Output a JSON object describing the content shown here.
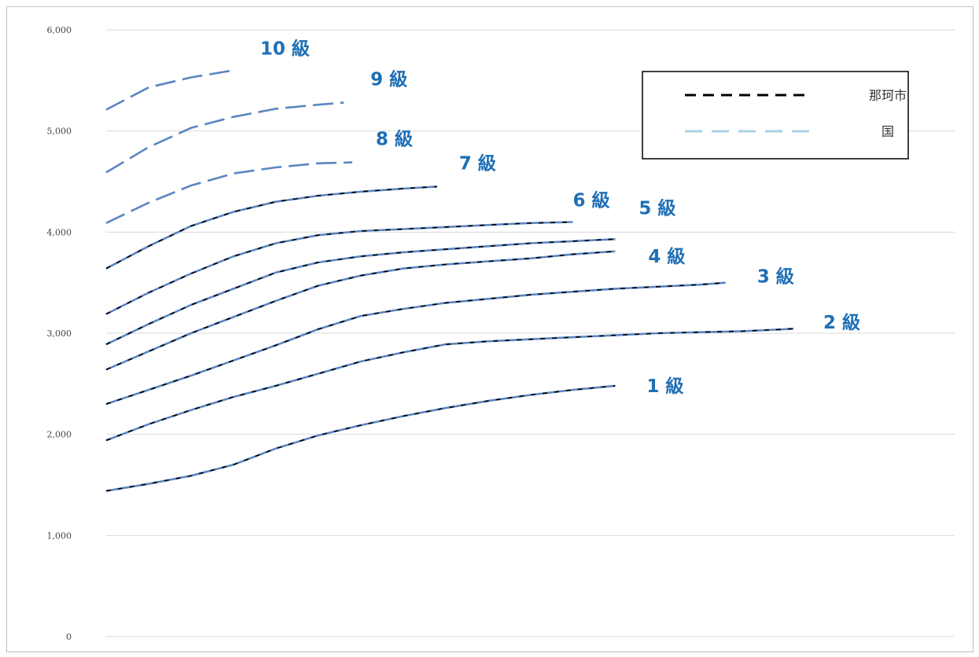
{
  "chart_data": {
    "type": "line",
    "ylim": [
      0,
      6000
    ],
    "yticks": [
      "0",
      "1,000",
      "2,000",
      "3,000",
      "4,000",
      "5,000",
      "6,000"
    ],
    "grid": true,
    "legend": {
      "placement": "top-right",
      "entries": [
        {
          "label": "那珂市",
          "color": "#000000",
          "style": "dashed"
        },
        {
          "label": "国",
          "color": "#a8d1e6",
          "style": "dashed"
        }
      ]
    },
    "series_color": "#5b86c2",
    "label_color": "#1f6fb5",
    "series": [
      {
        "name": "1 級",
        "has_city": true,
        "x": [
          0,
          5,
          10,
          15,
          20,
          25,
          30,
          35,
          40,
          45,
          50,
          55,
          60
        ],
        "y": [
          1440,
          1510,
          1590,
          1700,
          1860,
          1990,
          2090,
          2180,
          2260,
          2330,
          2390,
          2440,
          2480
        ]
      },
      {
        "name": "2 級",
        "has_city": true,
        "x": [
          0,
          5,
          10,
          15,
          20,
          25,
          30,
          35,
          40,
          45,
          50,
          55,
          60,
          65,
          70,
          75,
          80,
          81
        ],
        "y": [
          1940,
          2100,
          2240,
          2370,
          2480,
          2600,
          2720,
          2810,
          2890,
          2920,
          2940,
          2960,
          2980,
          3000,
          3010,
          3020,
          3040,
          3045
        ]
      },
      {
        "name": "3 級",
        "has_city": true,
        "x": [
          0,
          5,
          10,
          15,
          20,
          25,
          30,
          35,
          40,
          45,
          50,
          55,
          60,
          65,
          70,
          73
        ],
        "y": [
          2300,
          2440,
          2580,
          2730,
          2880,
          3040,
          3170,
          3240,
          3300,
          3340,
          3380,
          3410,
          3440,
          3460,
          3480,
          3500
        ]
      },
      {
        "name": "4 級",
        "has_city": true,
        "x": [
          0,
          5,
          10,
          15,
          20,
          25,
          30,
          35,
          40,
          45,
          50,
          55,
          60
        ],
        "y": [
          2640,
          2820,
          3000,
          3160,
          3320,
          3470,
          3570,
          3640,
          3680,
          3710,
          3740,
          3780,
          3810
        ]
      },
      {
        "name": "5 級",
        "has_city": true,
        "x": [
          0,
          5,
          10,
          15,
          20,
          25,
          30,
          35,
          40,
          45,
          50,
          55,
          60
        ],
        "y": [
          2890,
          3090,
          3280,
          3440,
          3600,
          3700,
          3760,
          3800,
          3830,
          3860,
          3890,
          3910,
          3930
        ]
      },
      {
        "name": "6 級",
        "has_city": true,
        "x": [
          0,
          5,
          10,
          15,
          20,
          25,
          30,
          35,
          40,
          45,
          50,
          55
        ],
        "y": [
          3190,
          3400,
          3590,
          3760,
          3890,
          3970,
          4010,
          4030,
          4050,
          4070,
          4090,
          4100
        ]
      },
      {
        "name": "7 級",
        "has_city": true,
        "x": [
          0,
          5,
          10,
          15,
          20,
          25,
          30,
          35,
          39
        ],
        "y": [
          3640,
          3860,
          4060,
          4200,
          4300,
          4360,
          4400,
          4430,
          4450
        ]
      },
      {
        "name": "8 級",
        "has_city": false,
        "x": [
          0,
          5,
          10,
          15,
          20,
          25,
          29
        ],
        "y": [
          4090,
          4290,
          4460,
          4580,
          4640,
          4680,
          4690
        ]
      },
      {
        "name": "9 級",
        "has_city": false,
        "x": [
          0,
          5,
          10,
          15,
          20,
          25,
          28
        ],
        "y": [
          4590,
          4840,
          5030,
          5140,
          5220,
          5260,
          5280
        ]
      },
      {
        "name": "10 級",
        "has_city": false,
        "x": [
          0,
          5,
          10,
          15
        ],
        "y": [
          5210,
          5430,
          5530,
          5600
        ]
      }
    ]
  }
}
